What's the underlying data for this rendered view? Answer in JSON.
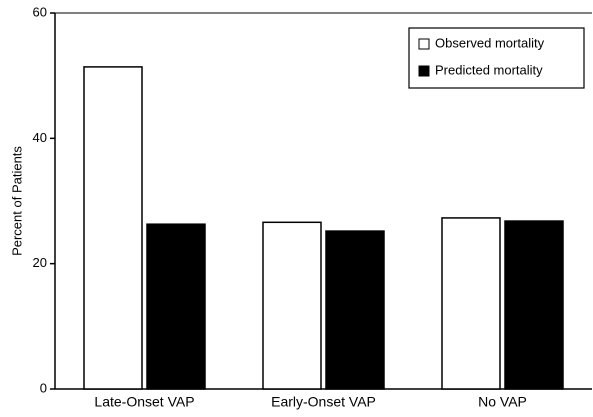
{
  "chart_data": {
    "type": "bar",
    "categories": [
      "Late-Onset VAP",
      "Early-Onset VAP",
      "No VAP"
    ],
    "series": [
      {
        "name": "Observed mortality",
        "color": "#ffffff",
        "values": [
          51.4,
          26.6,
          27.3
        ]
      },
      {
        "name": "Predicted mortality",
        "color": "#000000",
        "values": [
          26.3,
          25.2,
          26.8
        ]
      }
    ],
    "ylabel": "Percent of Patients",
    "ylim": [
      0,
      60
    ],
    "yticks": [
      0,
      20,
      40,
      60
    ],
    "legend": "upper right",
    "grid": false
  }
}
